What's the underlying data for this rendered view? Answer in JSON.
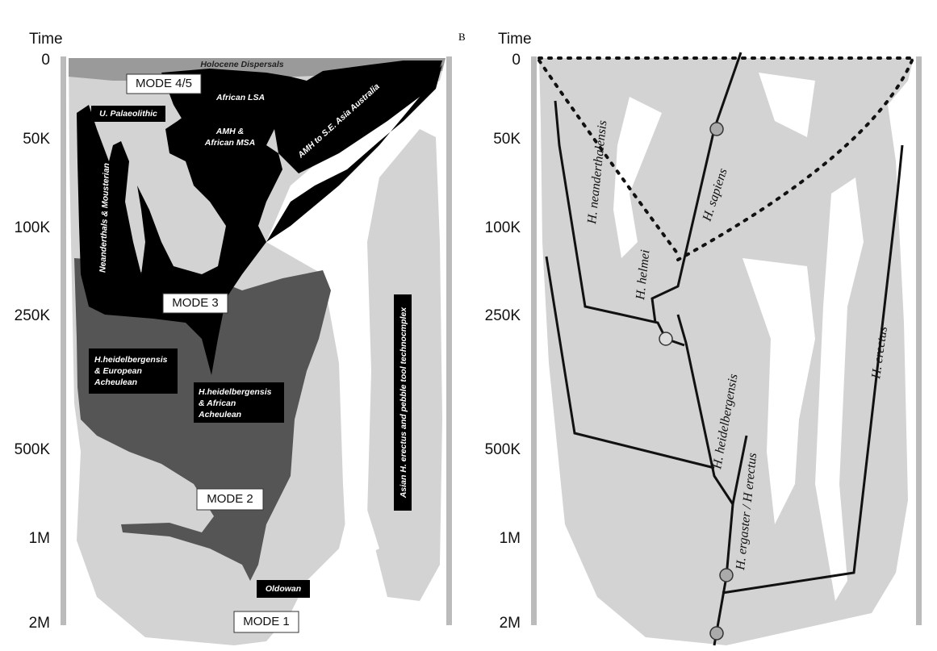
{
  "left": {
    "time_label": "Time",
    "ticks": [
      "0",
      "50K",
      "100K",
      "250K",
      "500K",
      "1M",
      "2M"
    ],
    "holocene": "Holocene Dispersals",
    "mode45": "MODE 4/5",
    "african_lsa": "African LSA",
    "u_palaeolithic": "U. Palaeolithic",
    "amh_msa": [
      "AMH &",
      "African MSA"
    ],
    "amh_asia": "AMH to S.E. Asia Australia",
    "neanderthals": "Neanderthals & Mousterian",
    "mode3": "MODE 3",
    "heid_european": [
      "H.heidelbergensis",
      "& European",
      "Acheulean"
    ],
    "heid_african": [
      "H.heidelbergensis",
      "& African",
      "Acheulean"
    ],
    "mode2": "MODE 2",
    "asian_erectus": "Asian H. erectus and pebble tool technocmplex",
    "oldowan": "Oldowan",
    "mode1": "MODE 1"
  },
  "right": {
    "panel_label": "B",
    "time_label": "Time",
    "ticks": [
      "0",
      "50K",
      "100K",
      "250K",
      "500K",
      "1M",
      "2M"
    ],
    "species": {
      "neanderthalensis": "H. neanderthalensis",
      "sapiens": "H. sapiens",
      "helmei": "H. helmei",
      "heidelbergensis": "H. heidelbergensis",
      "ergaster": "H. ergaster / H erectus",
      "erectus": "H. erectus"
    }
  }
}
